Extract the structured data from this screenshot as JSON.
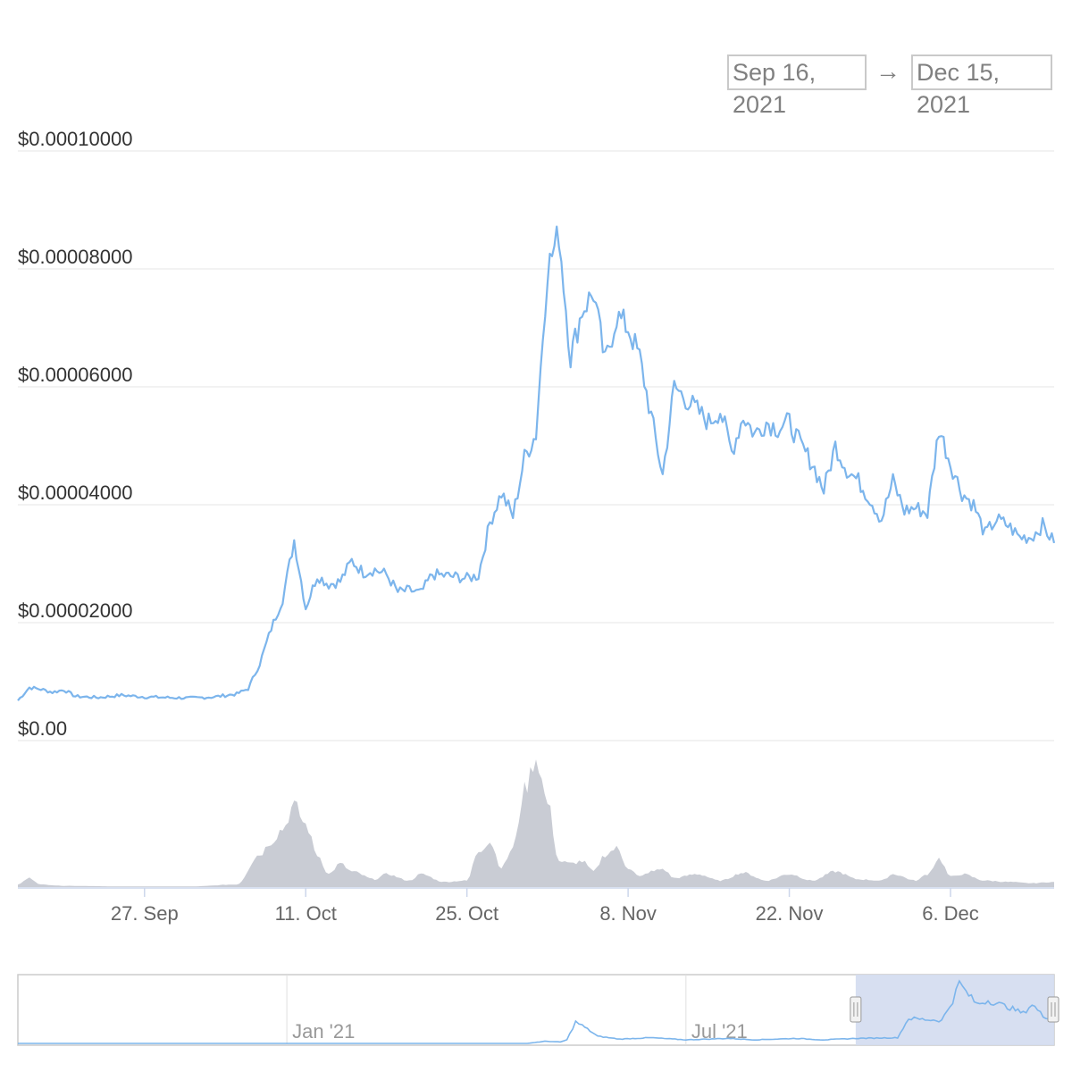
{
  "range_selector": {
    "from": "Sep 16, 2021",
    "arrow": "→",
    "to": "Dec 15, 2021"
  },
  "colors": {
    "price_line": "#7cb5ec",
    "volume_fill": "#c9ccd4",
    "grid": "#e6e6e6",
    "navigator_mask": "#d3dcef",
    "label_text": "#333333",
    "axis_text": "#666666"
  },
  "chart_data": [
    {
      "type": "line",
      "name": "price",
      "x_range": [
        "2021-09-16",
        "2021-12-15"
      ],
      "ylim": [
        0,
        0.0001
      ],
      "y_tick_labels": [
        "$0.00",
        "$0.00002000",
        "$0.00004000",
        "$0.00006000",
        "$0.00008000",
        "$0.00010000"
      ],
      "y_ticks": [
        0,
        2e-05,
        4e-05,
        6e-05,
        8e-05,
        0.0001
      ],
      "x_tick_labels": [
        "27. Sep",
        "11. Oct",
        "25. Oct",
        "8. Nov",
        "22. Nov",
        "6. Dec"
      ],
      "x_ticks": [
        "2021-09-27",
        "2021-10-11",
        "2021-10-25",
        "2021-11-08",
        "2021-11-22",
        "2021-12-06"
      ],
      "grid": true,
      "points": [
        [
          "2021-09-16",
          6.8e-06
        ],
        [
          "2021-09-17",
          9e-06
        ],
        [
          "2021-09-18",
          8.7e-06
        ],
        [
          "2021-09-19",
          8.2e-06
        ],
        [
          "2021-09-20",
          8.6e-06
        ],
        [
          "2021-09-21",
          7.5e-06
        ],
        [
          "2021-09-23",
          7.3e-06
        ],
        [
          "2021-09-25",
          7.7e-06
        ],
        [
          "2021-09-27",
          7.4e-06
        ],
        [
          "2021-09-29",
          7.3e-06
        ],
        [
          "2021-10-01",
          7.2e-06
        ],
        [
          "2021-10-03",
          7.4e-06
        ],
        [
          "2021-10-05",
          7.9e-06
        ],
        [
          "2021-10-06",
          8.8e-06
        ],
        [
          "2021-10-07",
          1.3e-05
        ],
        [
          "2021-10-08",
          1.9e-05
        ],
        [
          "2021-10-09",
          2.4e-05
        ],
        [
          "2021-10-10",
          3.4e-05
        ],
        [
          "2021-10-11",
          2.25e-05
        ],
        [
          "2021-10-12",
          2.8e-05
        ],
        [
          "2021-10-13",
          2.65e-05
        ],
        [
          "2021-10-14",
          2.7e-05
        ],
        [
          "2021-10-15",
          3.05e-05
        ],
        [
          "2021-10-16",
          2.85e-05
        ],
        [
          "2021-10-17",
          2.9e-05
        ],
        [
          "2021-10-18",
          2.82e-05
        ],
        [
          "2021-10-19",
          2.52e-05
        ],
        [
          "2021-10-20",
          2.55e-05
        ],
        [
          "2021-10-21",
          2.5e-05
        ],
        [
          "2021-10-22",
          2.82e-05
        ],
        [
          "2021-10-23",
          2.8e-05
        ],
        [
          "2021-10-24",
          2.78e-05
        ],
        [
          "2021-10-25",
          2.75e-05
        ],
        [
          "2021-10-26",
          2.8e-05
        ],
        [
          "2021-10-27",
          3.7e-05
        ],
        [
          "2021-10-28",
          4.2e-05
        ],
        [
          "2021-10-29",
          3.8e-05
        ],
        [
          "2021-10-30",
          4.8e-05
        ],
        [
          "2021-10-31",
          5.2e-05
        ],
        [
          "2021-11-01",
          8e-05
        ],
        [
          "2021-11-02",
          8.6e-05
        ],
        [
          "2021-11-03",
          6.5e-05
        ],
        [
          "2021-11-04",
          7.3e-05
        ],
        [
          "2021-11-05",
          7.6e-05
        ],
        [
          "2021-11-06",
          6.4e-05
        ],
        [
          "2021-11-07",
          7.2e-05
        ],
        [
          "2021-11-08",
          7e-05
        ],
        [
          "2021-11-09",
          6.5e-05
        ],
        [
          "2021-11-10",
          5.5e-05
        ],
        [
          "2021-11-11",
          4.5e-05
        ],
        [
          "2021-11-12",
          6e-05
        ],
        [
          "2021-11-13",
          5.8e-05
        ],
        [
          "2021-11-14",
          5.6e-05
        ],
        [
          "2021-11-15",
          5.4e-05
        ],
        [
          "2021-11-16",
          5.6e-05
        ],
        [
          "2021-11-17",
          4.9e-05
        ],
        [
          "2021-11-18",
          5.5e-05
        ],
        [
          "2021-11-19",
          5.2e-05
        ],
        [
          "2021-11-20",
          5.4e-05
        ],
        [
          "2021-11-21",
          5.3e-05
        ],
        [
          "2021-11-22",
          5.4e-05
        ],
        [
          "2021-11-23",
          5e-05
        ],
        [
          "2021-11-24",
          4.7e-05
        ],
        [
          "2021-11-25",
          4.25e-05
        ],
        [
          "2021-11-26",
          5e-05
        ],
        [
          "2021-11-27",
          4.6e-05
        ],
        [
          "2021-11-28",
          4.4e-05
        ],
        [
          "2021-11-29",
          4.1e-05
        ],
        [
          "2021-11-30",
          3.75e-05
        ],
        [
          "2021-12-01",
          4.4e-05
        ],
        [
          "2021-12-02",
          3.9e-05
        ],
        [
          "2021-12-03",
          3.95e-05
        ],
        [
          "2021-12-04",
          3.85e-05
        ],
        [
          "2021-12-05",
          5.3e-05
        ],
        [
          "2021-12-06",
          4.7e-05
        ],
        [
          "2021-12-07",
          4.2e-05
        ],
        [
          "2021-12-08",
          4e-05
        ],
        [
          "2021-12-09",
          3.5e-05
        ],
        [
          "2021-12-10",
          3.75e-05
        ],
        [
          "2021-12-11",
          3.65e-05
        ],
        [
          "2021-12-12",
          3.45e-05
        ],
        [
          "2021-12-13",
          3.45e-05
        ],
        [
          "2021-12-14",
          3.65e-05
        ],
        [
          "2021-12-15",
          3.35e-05
        ]
      ]
    },
    {
      "type": "area",
      "name": "volume",
      "points": [
        [
          "2021-09-16",
          0.02
        ],
        [
          "2021-09-17",
          0.07
        ],
        [
          "2021-09-18",
          0.02
        ],
        [
          "2021-09-20",
          0.01
        ],
        [
          "2021-09-25",
          0.005
        ],
        [
          "2021-10-01",
          0.005
        ],
        [
          "2021-10-05",
          0.02
        ],
        [
          "2021-10-07",
          0.25
        ],
        [
          "2021-10-08",
          0.35
        ],
        [
          "2021-10-09",
          0.45
        ],
        [
          "2021-10-10",
          0.63
        ],
        [
          "2021-10-11",
          0.48
        ],
        [
          "2021-10-12",
          0.25
        ],
        [
          "2021-10-13",
          0.1
        ],
        [
          "2021-10-14",
          0.18
        ],
        [
          "2021-10-15",
          0.12
        ],
        [
          "2021-10-17",
          0.06
        ],
        [
          "2021-10-18",
          0.1
        ],
        [
          "2021-10-20",
          0.05
        ],
        [
          "2021-10-21",
          0.1
        ],
        [
          "2021-10-23",
          0.04
        ],
        [
          "2021-10-25",
          0.05
        ],
        [
          "2021-10-26",
          0.28
        ],
        [
          "2021-10-27",
          0.35
        ],
        [
          "2021-10-28",
          0.15
        ],
        [
          "2021-10-29",
          0.3
        ],
        [
          "2021-10-30",
          0.75
        ],
        [
          "2021-10-31",
          1.0
        ],
        [
          "2021-11-01",
          0.65
        ],
        [
          "2021-11-02",
          0.2
        ],
        [
          "2021-11-03",
          0.18
        ],
        [
          "2021-11-04",
          0.2
        ],
        [
          "2021-11-05",
          0.12
        ],
        [
          "2021-11-06",
          0.25
        ],
        [
          "2021-11-07",
          0.3
        ],
        [
          "2021-11-08",
          0.15
        ],
        [
          "2021-11-09",
          0.08
        ],
        [
          "2021-11-10",
          0.12
        ],
        [
          "2021-11-11",
          0.14
        ],
        [
          "2021-11-12",
          0.07
        ],
        [
          "2021-11-14",
          0.1
        ],
        [
          "2021-11-16",
          0.05
        ],
        [
          "2021-11-18",
          0.11
        ],
        [
          "2021-11-20",
          0.05
        ],
        [
          "2021-11-22",
          0.1
        ],
        [
          "2021-11-24",
          0.05
        ],
        [
          "2021-11-26",
          0.12
        ],
        [
          "2021-11-28",
          0.06
        ],
        [
          "2021-11-30",
          0.05
        ],
        [
          "2021-12-01",
          0.1
        ],
        [
          "2021-12-03",
          0.05
        ],
        [
          "2021-12-04",
          0.1
        ],
        [
          "2021-12-05",
          0.22
        ],
        [
          "2021-12-06",
          0.08
        ],
        [
          "2021-12-07",
          0.1
        ],
        [
          "2021-12-09",
          0.05
        ],
        [
          "2021-12-11",
          0.04
        ],
        [
          "2021-12-13",
          0.03
        ],
        [
          "2021-12-15",
          0.04
        ]
      ]
    },
    {
      "type": "line",
      "name": "navigator",
      "x_tick_labels": [
        "Jan '21",
        "Jul '21"
      ],
      "x_ticks": [
        "2021-01-01",
        "2021-07-01"
      ],
      "x_range": [
        "2020-09-01",
        "2021-12-15"
      ],
      "selected_range": [
        "2021-09-16",
        "2021-12-15"
      ],
      "points": [
        [
          "2020-09-01",
          0.0
        ],
        [
          "2021-04-20",
          0.0
        ],
        [
          "2021-04-28",
          0.03
        ],
        [
          "2021-05-05",
          0.02
        ],
        [
          "2021-05-08",
          0.05
        ],
        [
          "2021-05-12",
          0.3
        ],
        [
          "2021-05-15",
          0.25
        ],
        [
          "2021-05-22",
          0.1
        ],
        [
          "2021-06-01",
          0.06
        ],
        [
          "2021-06-15",
          0.08
        ],
        [
          "2021-07-01",
          0.05
        ],
        [
          "2021-07-20",
          0.07
        ],
        [
          "2021-08-01",
          0.05
        ],
        [
          "2021-08-20",
          0.07
        ],
        [
          "2021-09-01",
          0.05
        ],
        [
          "2021-09-16",
          0.07
        ],
        [
          "2021-10-05",
          0.08
        ],
        [
          "2021-10-10",
          0.35
        ],
        [
          "2021-10-25",
          0.32
        ],
        [
          "2021-10-30",
          0.6
        ],
        [
          "2021-11-02",
          0.85
        ],
        [
          "2021-11-05",
          0.72
        ],
        [
          "2021-11-10",
          0.55
        ],
        [
          "2021-11-15",
          0.6
        ],
        [
          "2021-11-25",
          0.5
        ],
        [
          "2021-12-01",
          0.42
        ],
        [
          "2021-12-05",
          0.55
        ],
        [
          "2021-12-10",
          0.38
        ],
        [
          "2021-12-15",
          0.35
        ]
      ]
    }
  ]
}
